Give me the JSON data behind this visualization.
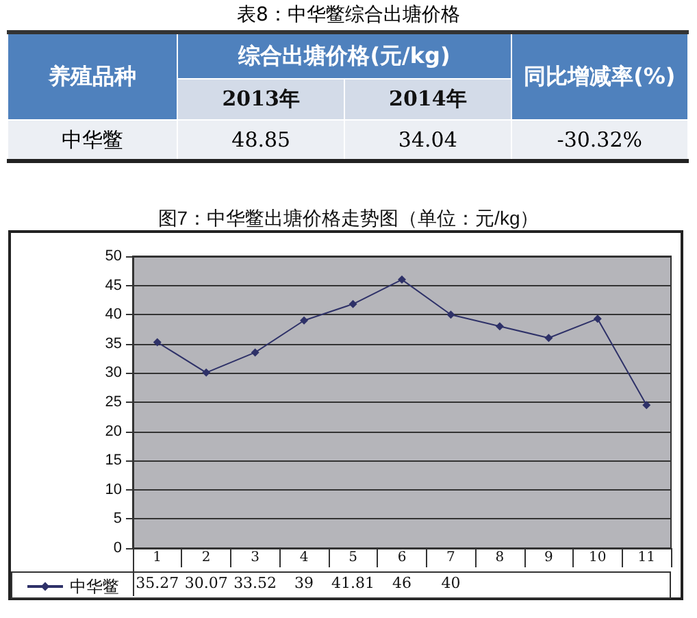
{
  "chart_data": [
    {
      "type": "other",
      "title": "表8：中华鳖综合出塘价格",
      "annotations": [
        "养殖品种",
        "综合出塘价格(元/kg)",
        "2013年",
        "2014年",
        "同比增减率(%)",
        "中华鳖",
        "48.85",
        "34.04",
        "-30.32%"
      ]
    },
    {
      "type": "line",
      "title": "图7：中华鳖出塘价格走势图（单位：元/kg）",
      "categories": [
        "1",
        "2",
        "3",
        "4",
        "5",
        "6",
        "7",
        "8",
        "9",
        "10",
        "11"
      ],
      "series": [
        {
          "name": "中华鳖",
          "color": "#2e3168",
          "values": [
            35.27,
            30.07,
            33.52,
            39,
            41.81,
            46,
            40,
            38,
            36,
            39.3,
            24.5
          ],
          "value_labels": [
            "35.27",
            "30.07",
            "33.52",
            "39",
            "41.81",
            "46",
            "40",
            null,
            null,
            null,
            null
          ]
        }
      ],
      "ylim": [
        0,
        50
      ],
      "yticks": [
        0,
        5,
        10,
        15,
        20,
        25,
        30,
        35,
        40,
        45,
        50
      ],
      "grid": "y",
      "marker": "diamond",
      "line_style": "solid",
      "legend": "bottom left"
    }
  ]
}
